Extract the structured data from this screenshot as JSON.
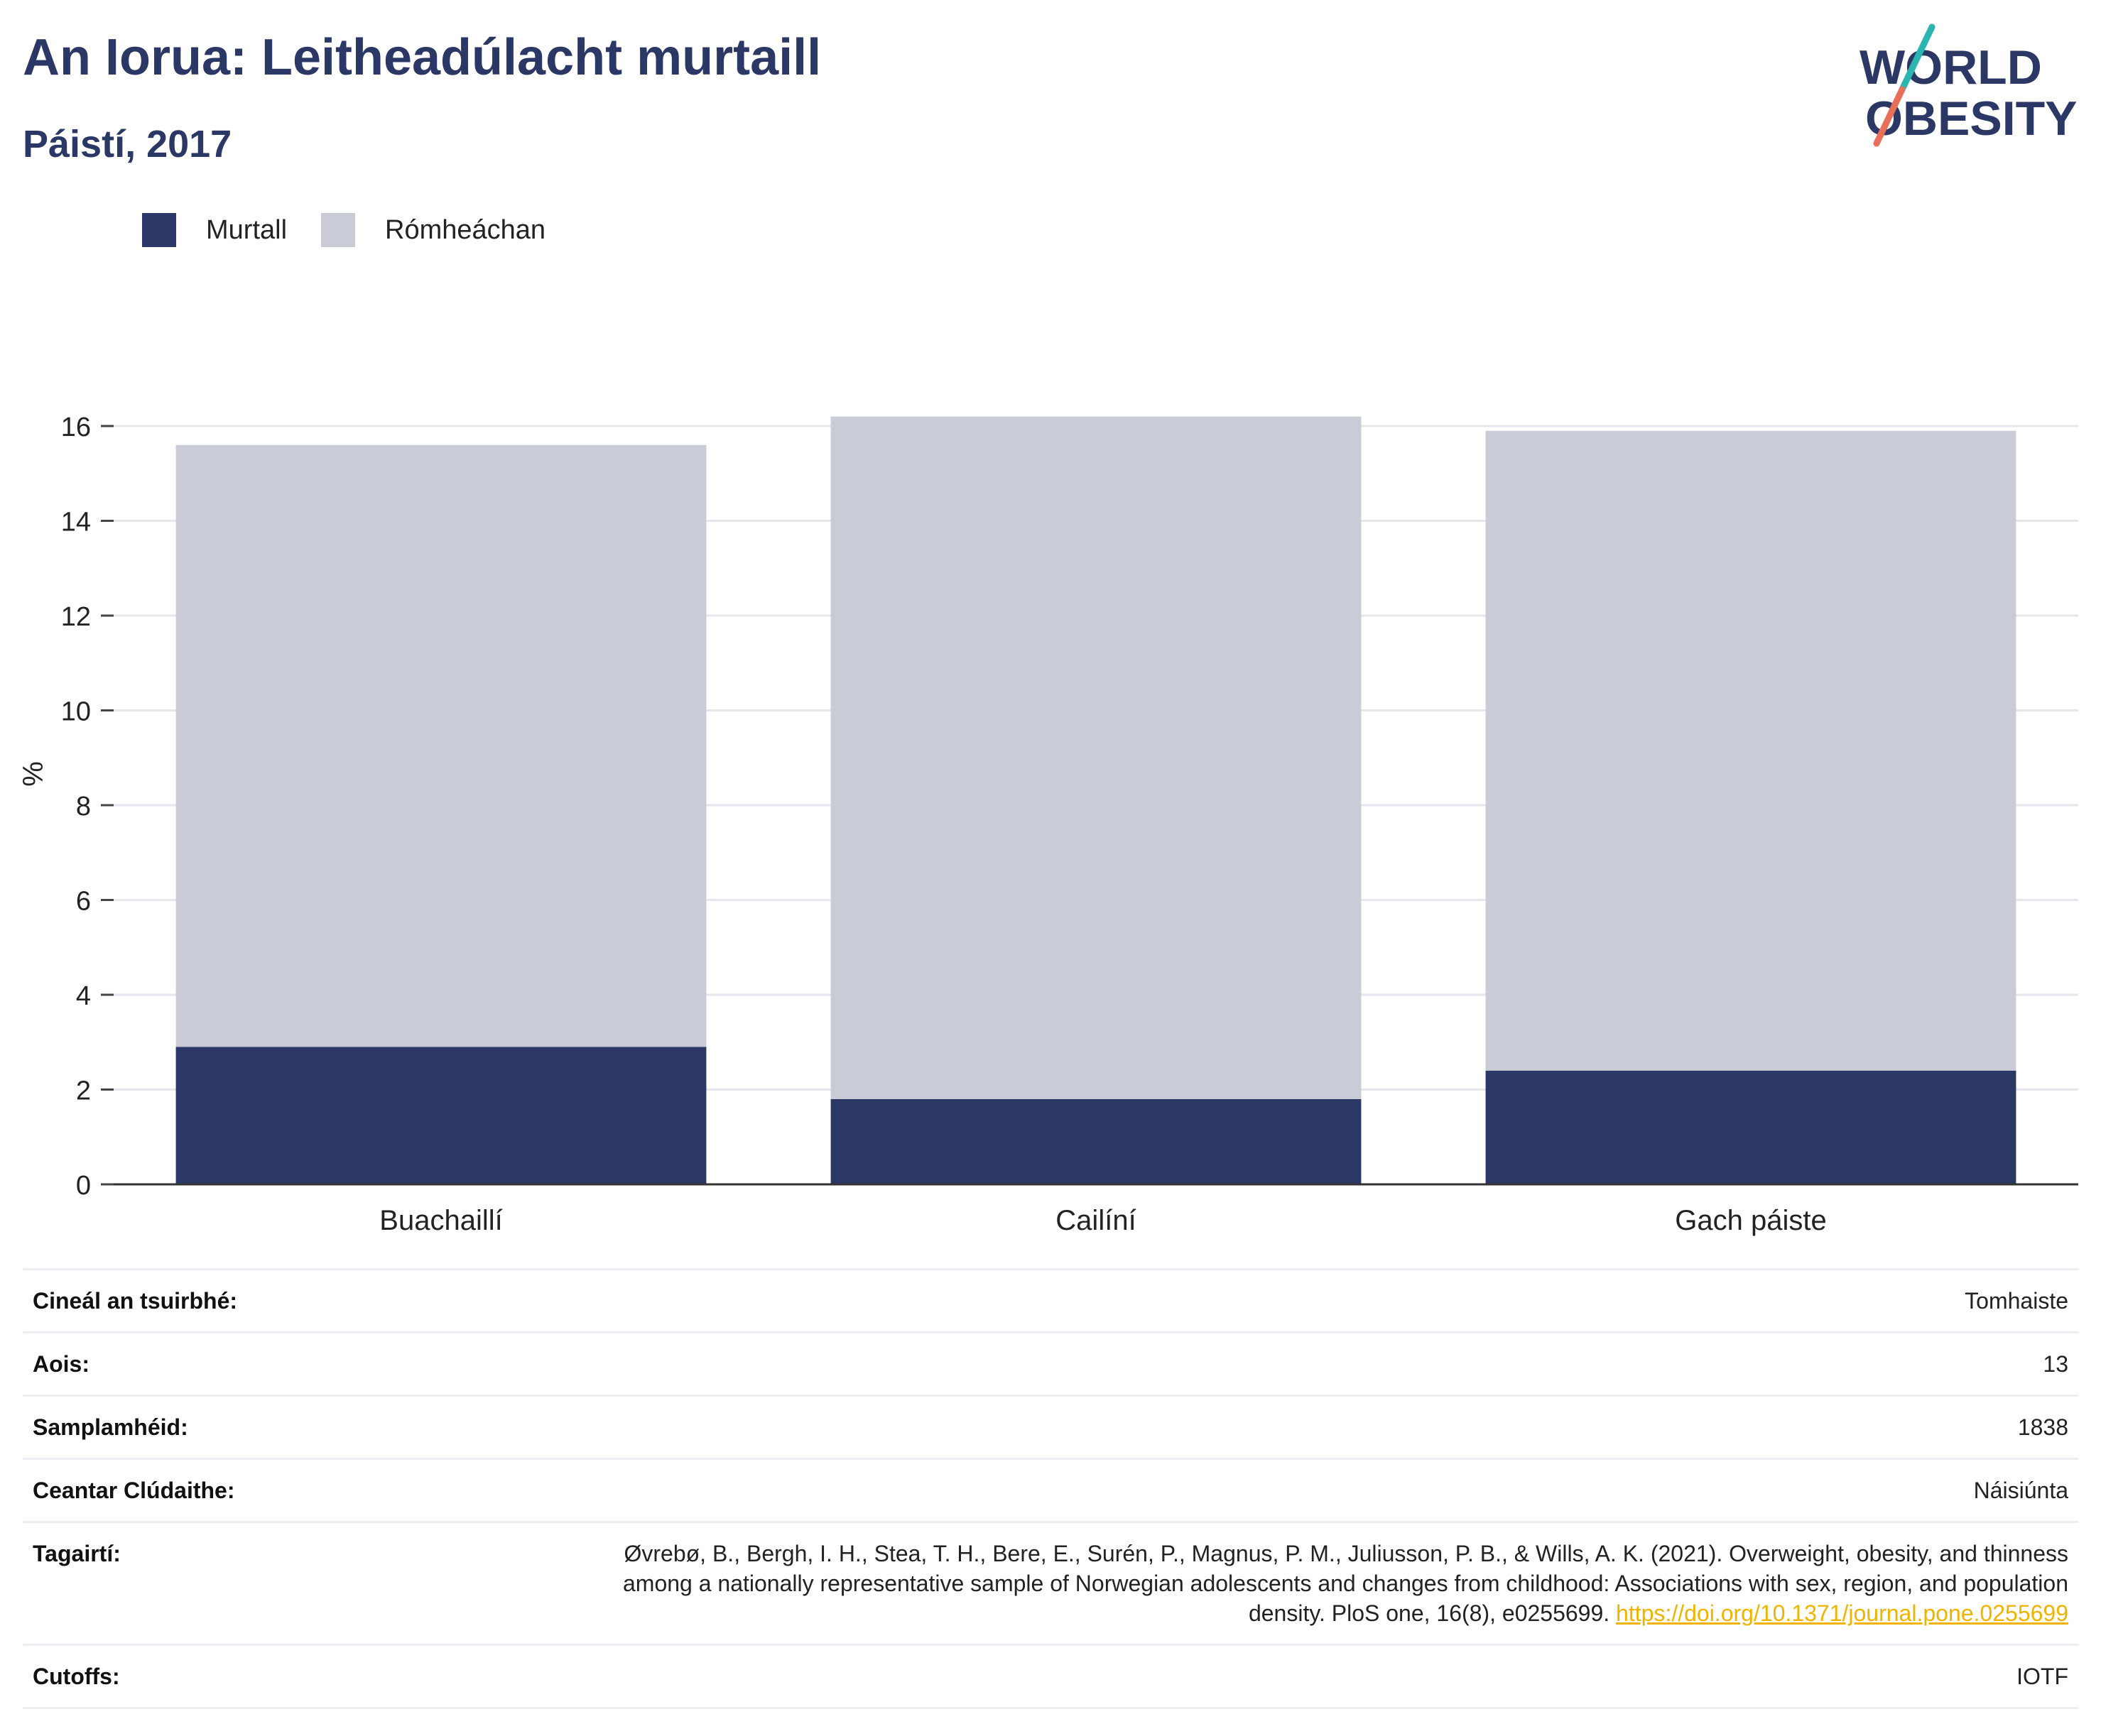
{
  "header": {
    "title": "An Iorua: Leitheadúlacht murtaill",
    "subtitle": "Páistí, 2017"
  },
  "logo": {
    "line1": "WORLD",
    "line2": "OBESITY",
    "colors": {
      "text": "#2b3765",
      "slash_top": "#2bb5b0",
      "slash_bottom": "#e8705a"
    }
  },
  "colors": {
    "obese": "#2b3765",
    "overweight": "#c9cbd7",
    "grid": "#e6e7ec",
    "axis": "#333333"
  },
  "chart_data": {
    "type": "bar",
    "stacked": true,
    "categories": [
      "Buachaillí",
      "Cailíní",
      "Gach páiste"
    ],
    "series": [
      {
        "name": "Murtall",
        "values": [
          2.9,
          1.8,
          2.4
        ],
        "color": "#2b3765"
      },
      {
        "name": "Rómheáchan",
        "values": [
          12.7,
          14.4,
          13.5
        ],
        "color": "#c9cbd7"
      }
    ],
    "ylabel": "%",
    "ylim": [
      0,
      16.6
    ],
    "yticks": [
      0,
      2,
      4,
      6,
      8,
      10,
      12,
      14,
      16
    ],
    "grid": true,
    "legend": "top-left"
  },
  "table": {
    "rows": [
      {
        "label": "Cineál an tsuirbhé:",
        "value": "Tomhaiste"
      },
      {
        "label": "Aois:",
        "value": "13"
      },
      {
        "label": "Samplamhéid:",
        "value": "1838"
      },
      {
        "label": "Ceantar Clúdaithe:",
        "value": "Náisiúnta"
      }
    ],
    "reference": {
      "label": "Tagairtí:",
      "text": "Øvrebø, B., Bergh, I. H., Stea, T. H., Bere, E., Surén, P., Magnus, P. M., Juliusson, P. B., & Wills, A. K. (2021). Overweight, obesity, and thinness among a nationally representative sample of Norwegian adolescents and changes from childhood: Associations with sex, region, and population density. PloS one, 16(8), e0255699.",
      "link": "https://doi.org/10.1371/journal.pone.0255699"
    },
    "cutoffs": {
      "label": "Cutoffs:",
      "value": "IOTF"
    }
  }
}
